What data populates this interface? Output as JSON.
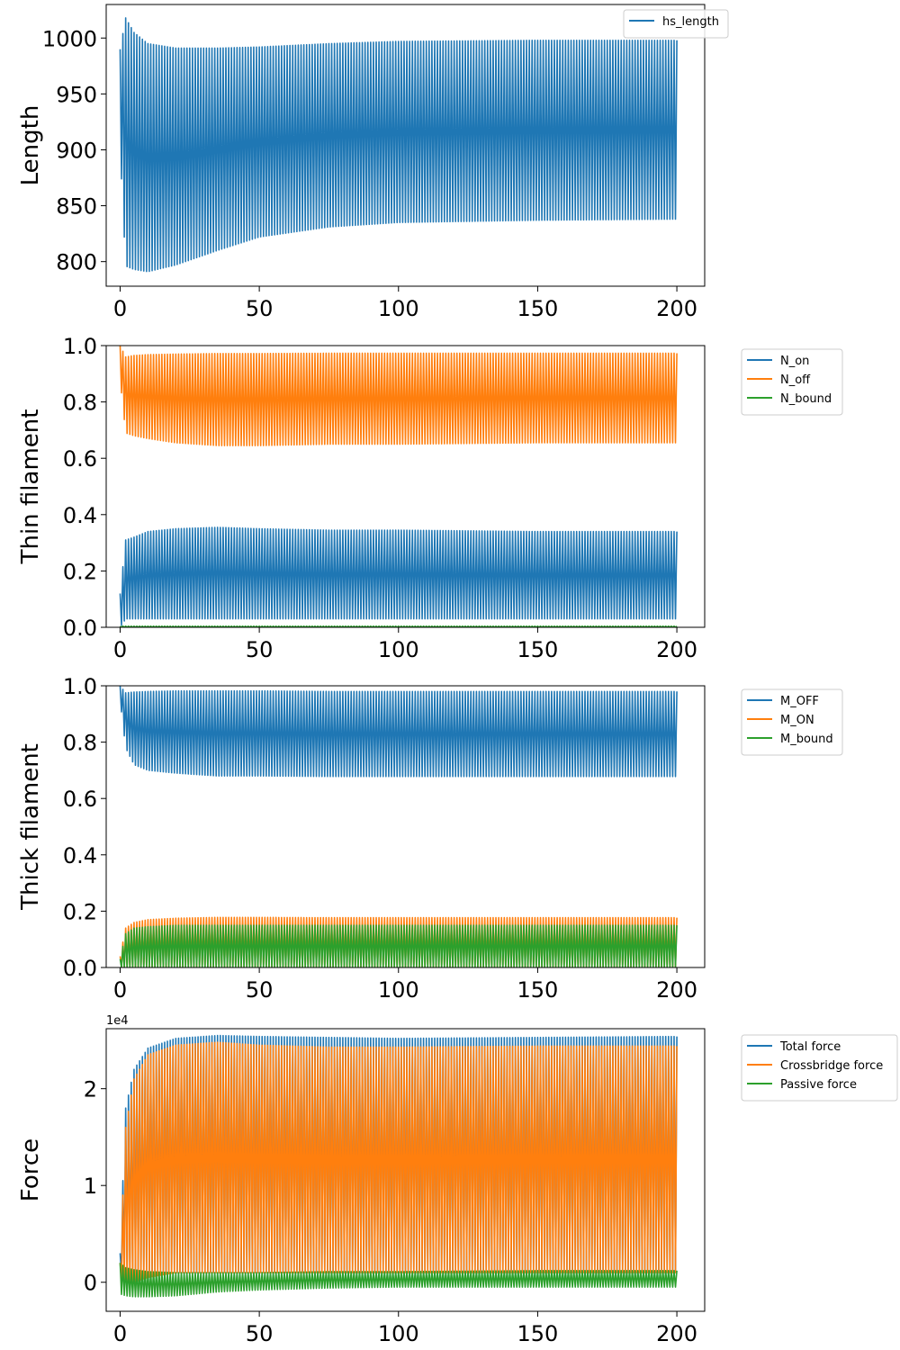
{
  "chart_data": [
    {
      "type": "line",
      "ylabel": "Length",
      "xlim": [
        -5,
        210
      ],
      "ylim": [
        778,
        1030
      ],
      "xticks": [
        0,
        50,
        100,
        150,
        200
      ],
      "xtick_labels": [
        "0",
        "50",
        "100",
        "150",
        "200"
      ],
      "yticks": [
        800,
        850,
        900,
        950,
        1000
      ],
      "ytick_labels": [
        "800",
        "850",
        "900",
        "950",
        "1000"
      ],
      "legend": "upper-right",
      "x": [
        0,
        2,
        5,
        10,
        20,
        35,
        50,
        75,
        100,
        150,
        200
      ],
      "series": [
        {
          "name": "hs_length",
          "color": "#1f77b4",
          "kind": "band",
          "upper": [
            990,
            1018,
            1005,
            995,
            991,
            991,
            992,
            995,
            997,
            998,
            998
          ],
          "lower": [
            900,
            796,
            793,
            791,
            797,
            810,
            822,
            831,
            835,
            837,
            838
          ]
        }
      ]
    },
    {
      "type": "line",
      "ylabel": "Thin filament",
      "xlim": [
        -5,
        210
      ],
      "ylim": [
        0,
        1.0
      ],
      "xticks": [
        0,
        50,
        100,
        150,
        200
      ],
      "xtick_labels": [
        "0",
        "50",
        "100",
        "150",
        "200"
      ],
      "yticks": [
        0.0,
        0.2,
        0.4,
        0.6,
        0.8,
        1.0
      ],
      "ytick_labels": [
        "0.0",
        "0.2",
        "0.4",
        "0.6",
        "0.8",
        "1.0"
      ],
      "legend": "outside-right",
      "x": [
        0,
        2,
        5,
        10,
        20,
        35,
        50,
        75,
        100,
        150,
        200
      ],
      "series": [
        {
          "name": "N_on",
          "color": "#1f77b4",
          "kind": "band",
          "upper": [
            0.12,
            0.31,
            0.32,
            0.34,
            0.35,
            0.355,
            0.35,
            0.345,
            0.345,
            0.34,
            0.34
          ],
          "lower": [
            0.0,
            0.03,
            0.03,
            0.03,
            0.03,
            0.03,
            0.03,
            0.03,
            0.03,
            0.03,
            0.03
          ]
        },
        {
          "name": "N_off",
          "color": "#ff7f0e",
          "kind": "band",
          "upper": [
            1.0,
            0.96,
            0.965,
            0.968,
            0.97,
            0.972,
            0.972,
            0.973,
            0.973,
            0.973,
            0.973
          ],
          "lower": [
            0.88,
            0.69,
            0.68,
            0.67,
            0.655,
            0.645,
            0.645,
            0.65,
            0.65,
            0.655,
            0.655
          ]
        },
        {
          "name": "N_bound",
          "color": "#2ca02c",
          "kind": "band",
          "upper": [
            0.004,
            0.004,
            0.004,
            0.004,
            0.004,
            0.004,
            0.004,
            0.004,
            0.004,
            0.004,
            0.004
          ],
          "lower": [
            0.0,
            0.0,
            0.0,
            0.0,
            0.0,
            0.0,
            0.0,
            0.0,
            0.0,
            0.0,
            0.0
          ]
        }
      ]
    },
    {
      "type": "line",
      "ylabel": "Thick filament",
      "xlim": [
        -5,
        210
      ],
      "ylim": [
        0,
        1.0
      ],
      "xticks": [
        0,
        50,
        100,
        150,
        200
      ],
      "xtick_labels": [
        "0",
        "50",
        "100",
        "150",
        "200"
      ],
      "yticks": [
        0.0,
        0.2,
        0.4,
        0.6,
        0.8,
        1.0
      ],
      "ytick_labels": [
        "0.0",
        "0.2",
        "0.4",
        "0.6",
        "0.8",
        "1.0"
      ],
      "legend": "outside-right",
      "x": [
        0,
        2,
        5,
        10,
        20,
        35,
        50,
        75,
        100,
        150,
        200
      ],
      "series": [
        {
          "name": "M_OFF",
          "color": "#1f77b4",
          "kind": "band",
          "upper": [
            1.0,
            0.975,
            0.978,
            0.98,
            0.982,
            0.982,
            0.982,
            0.98,
            0.98,
            0.98,
            0.98
          ],
          "lower": [
            0.95,
            0.78,
            0.72,
            0.7,
            0.69,
            0.68,
            0.68,
            0.678,
            0.678,
            0.678,
            0.678
          ]
        },
        {
          "name": "M_ON",
          "color": "#ff7f0e",
          "kind": "band",
          "upper": [
            0.04,
            0.14,
            0.16,
            0.17,
            0.175,
            0.178,
            0.178,
            0.177,
            0.177,
            0.177,
            0.177
          ],
          "lower": [
            0.0,
            0.0,
            0.0,
            0.0,
            0.0,
            0.0,
            0.0,
            0.0,
            0.0,
            0.0,
            0.0
          ]
        },
        {
          "name": "M_bound",
          "color": "#2ca02c",
          "kind": "band",
          "upper": [
            0.03,
            0.12,
            0.14,
            0.145,
            0.15,
            0.15,
            0.15,
            0.15,
            0.15,
            0.15,
            0.15
          ],
          "lower": [
            0.0,
            0.0,
            0.0,
            0.0,
            0.0,
            0.0,
            0.0,
            0.0,
            0.0,
            0.0,
            0.0
          ]
        }
      ]
    },
    {
      "type": "line",
      "ylabel": "Force",
      "offset_text": "1e4",
      "xlim": [
        -5,
        210
      ],
      "ylim": [
        -0.3,
        2.62
      ],
      "xticks": [
        0,
        50,
        100,
        150,
        200
      ],
      "xtick_labels": [
        "0",
        "50",
        "100",
        "150",
        "200"
      ],
      "yticks": [
        0,
        1,
        2
      ],
      "ytick_labels": [
        "0",
        "1",
        "2"
      ],
      "legend": "outside-right",
      "x": [
        0,
        2,
        5,
        10,
        20,
        35,
        50,
        75,
        100,
        150,
        200
      ],
      "series": [
        {
          "name": "Total force",
          "color": "#1f77b4",
          "kind": "band",
          "upper": [
            0.3,
            1.8,
            2.2,
            2.42,
            2.52,
            2.55,
            2.54,
            2.53,
            2.52,
            2.53,
            2.54
          ],
          "lower": [
            0.05,
            0.1,
            0.1,
            0.1,
            0.1,
            0.1,
            0.1,
            0.1,
            0.1,
            0.1,
            0.1
          ]
        },
        {
          "name": "Crossbridge force",
          "color": "#ff7f0e",
          "kind": "band",
          "upper": [
            0.2,
            1.6,
            2.1,
            2.35,
            2.45,
            2.48,
            2.45,
            2.43,
            2.43,
            2.44,
            2.44
          ],
          "lower": [
            0.0,
            0.0,
            0.0,
            0.05,
            0.1,
            0.1,
            0.1,
            0.1,
            0.1,
            0.1,
            0.1
          ]
        },
        {
          "name": "Passive force",
          "color": "#2ca02c",
          "kind": "band",
          "upper": [
            0.2,
            0.15,
            0.13,
            0.11,
            0.1,
            0.1,
            0.1,
            0.11,
            0.11,
            0.12,
            0.12
          ],
          "lower": [
            -0.12,
            -0.14,
            -0.15,
            -0.15,
            -0.14,
            -0.1,
            -0.08,
            -0.06,
            -0.05,
            -0.05,
            -0.05
          ]
        }
      ]
    }
  ]
}
